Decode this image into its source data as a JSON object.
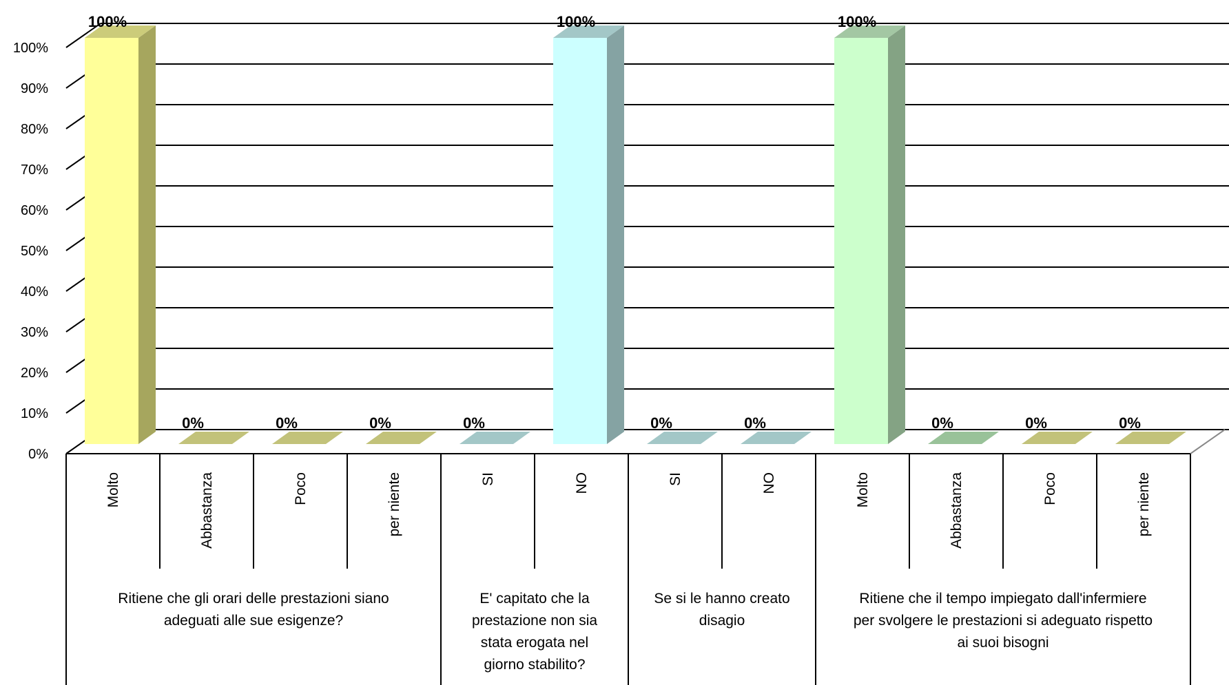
{
  "chart_data": {
    "type": "bar",
    "title": "",
    "xlabel": "",
    "ylabel": "",
    "ylim": [
      0,
      100
    ],
    "y_ticks": [
      "0%",
      "10%",
      "20%",
      "30%",
      "40%",
      "50%",
      "60%",
      "70%",
      "80%",
      "90%",
      "100%"
    ],
    "grid": true,
    "legend": "none",
    "three_d": true,
    "categories": [
      "Molto",
      "Abbastanza",
      "Poco",
      "per niente",
      "SI",
      "NO",
      "SI",
      "NO",
      "Molto",
      "Abbastanza",
      "Poco",
      "per niente"
    ],
    "values": [
      100,
      0,
      0,
      0,
      0,
      100,
      0,
      0,
      100,
      0,
      0,
      0
    ],
    "data_labels": [
      "100%",
      "0%",
      "0%",
      "0%",
      "0%",
      "100%",
      "0%",
      "0%",
      "100%",
      "0%",
      "0%",
      "0%"
    ],
    "groups": [
      {
        "lines": [
          "Ritiene che gli orari delle prestazioni siano",
          "adeguati alle sue esigenze?"
        ],
        "span": 4
      },
      {
        "lines": [
          "E' capitato che la",
          "prestazione non sia",
          "stata erogata nel",
          "giorno stabilito?"
        ],
        "span": 2
      },
      {
        "lines": [
          "Se si le hanno creato",
          "disagio"
        ],
        "span": 2
      },
      {
        "lines": [
          "Ritiene che il tempo impiegato dall'infermiere",
          "per svolgere le prestazioni si adeguato rispetto",
          "ai suoi bisogni"
        ],
        "span": 4
      }
    ],
    "bar_colors": [
      "#ffff99",
      "#ccff33",
      "#ccff33",
      "#ccff33",
      "#ccffff",
      "#ccffff",
      "#ccffff",
      "#ccffff",
      "#ccffcc",
      "#99cc99",
      "#ccff33",
      "#ccff33"
    ],
    "bar_side_colors": [
      "#a6a65e",
      "#a6a65e",
      "#a6a65e",
      "#a6a65e",
      "#85a3a3",
      "#85a3a3",
      "#85a3a3",
      "#85a3a3",
      "#84a384",
      "#84a384",
      "#a6a65e",
      "#a6a65e"
    ],
    "bar_top_colors": [
      "#cccc7a",
      "#c2c27a",
      "#c2c27a",
      "#c2c27a",
      "#a3c7c7",
      "#a3c7c7",
      "#a3c7c7",
      "#a3c7c7",
      "#a3c7a3",
      "#99c299",
      "#c2c27a",
      "#c2c27a"
    ]
  }
}
